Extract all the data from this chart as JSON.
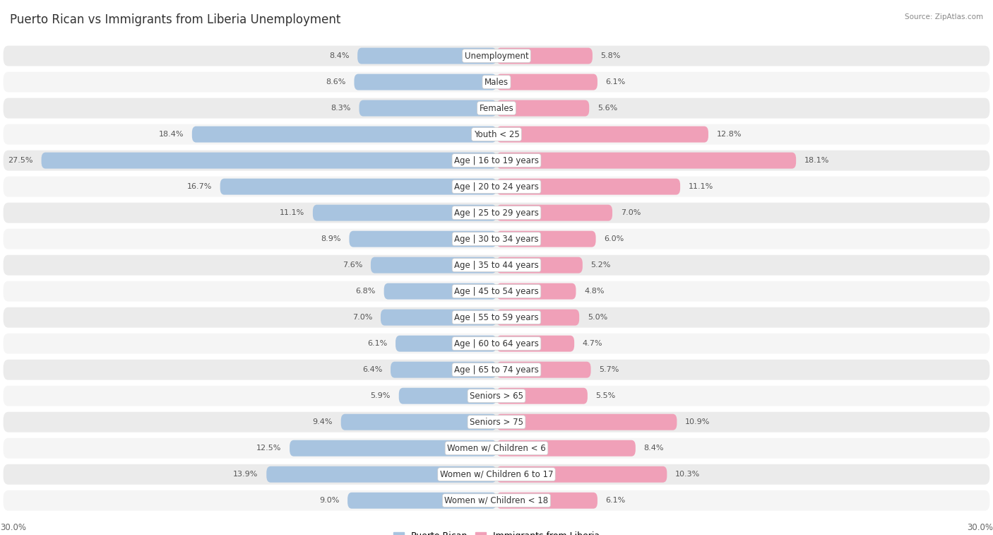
{
  "title": "Puerto Rican vs Immigrants from Liberia Unemployment",
  "source": "Source: ZipAtlas.com",
  "categories": [
    "Unemployment",
    "Males",
    "Females",
    "Youth < 25",
    "Age | 16 to 19 years",
    "Age | 20 to 24 years",
    "Age | 25 to 29 years",
    "Age | 30 to 34 years",
    "Age | 35 to 44 years",
    "Age | 45 to 54 years",
    "Age | 55 to 59 years",
    "Age | 60 to 64 years",
    "Age | 65 to 74 years",
    "Seniors > 65",
    "Seniors > 75",
    "Women w/ Children < 6",
    "Women w/ Children 6 to 17",
    "Women w/ Children < 18"
  ],
  "puerto_rican": [
    8.4,
    8.6,
    8.3,
    18.4,
    27.5,
    16.7,
    11.1,
    8.9,
    7.6,
    6.8,
    7.0,
    6.1,
    6.4,
    5.9,
    9.4,
    12.5,
    13.9,
    9.0
  ],
  "liberia": [
    5.8,
    6.1,
    5.6,
    12.8,
    18.1,
    11.1,
    7.0,
    6.0,
    5.2,
    4.8,
    5.0,
    4.7,
    5.7,
    5.5,
    10.9,
    8.4,
    10.3,
    6.1
  ],
  "blue_color": "#a8c4e0",
  "pink_color": "#f0a0b8",
  "row_light": "#f0f0f0",
  "row_dark": "#e4e4e4",
  "axis_max": 30.0,
  "bar_height": 0.62,
  "title_fontsize": 12,
  "label_fontsize": 8.5,
  "value_fontsize": 8,
  "legend_fontsize": 9
}
